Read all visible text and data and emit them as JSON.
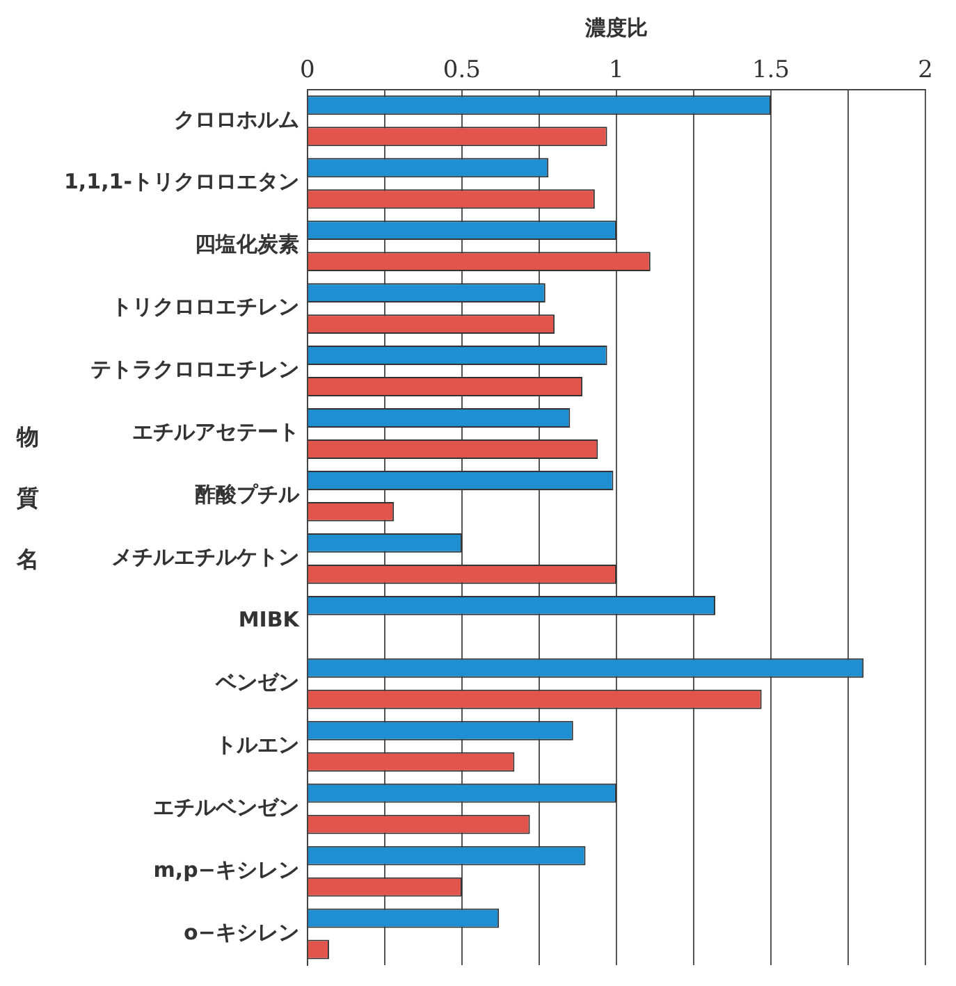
{
  "chart_data": {
    "type": "bar",
    "orientation": "horizontal",
    "xlabel": "濃度比",
    "ylabel": "物質名",
    "categories": [
      "クロロホルム",
      "1,1,1-トリクロロエタン",
      "四塩化炭素",
      "トリクロロエチレン",
      "テトラクロロエチレン",
      "エチルアセテート",
      "酢酸プチル",
      "メチルエチルケトン",
      "MIBK",
      "ベンゼン",
      "トルエン",
      "エチルベンゼン",
      "m,p−キシレン",
      "o−キシレン"
    ],
    "series": [
      {
        "color": "#1f8fd2",
        "values": [
          1.5,
          0.78,
          1.0,
          0.77,
          0.97,
          0.85,
          0.99,
          0.5,
          1.32,
          1.8,
          0.86,
          1.0,
          0.9,
          0.62
        ]
      },
      {
        "color": "#e2554c",
        "values": [
          0.97,
          0.93,
          1.11,
          0.8,
          0.89,
          0.94,
          0.28,
          1.0,
          null,
          1.47,
          0.67,
          0.72,
          0.5,
          0.07
        ]
      }
    ],
    "xlim": [
      0,
      2
    ],
    "xticks": [
      0,
      {
        "value": 0.25,
        "label": null
      },
      0.5,
      {
        "value": 0.75,
        "label": null
      },
      1,
      {
        "value": 1.25,
        "label": null
      },
      1.5,
      {
        "value": 1.75,
        "label": null
      },
      2
    ],
    "grid": "x",
    "legend": false
  }
}
